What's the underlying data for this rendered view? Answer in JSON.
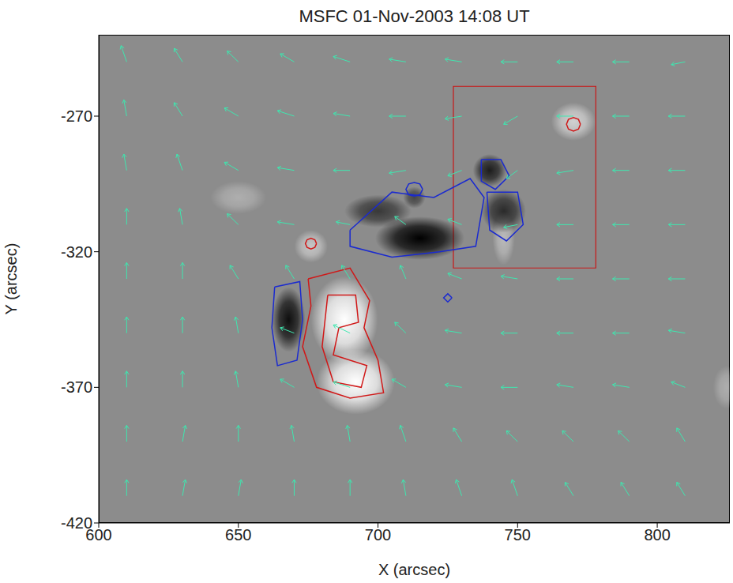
{
  "chart_data": {
    "type": "vector_magnetogram",
    "title": "MSFC 01-Nov-2003 14:08 UT",
    "x_label": "X (arcsec)",
    "y_label": "Y (arcsec)",
    "xlim": [
      600,
      826
    ],
    "ylim": [
      -420,
      -240
    ],
    "xticks": [
      600,
      650,
      700,
      750,
      800
    ],
    "yticks": [
      -420,
      -370,
      -320,
      -270
    ],
    "field_sources": [
      {
        "x": 688,
        "y": -345,
        "rx": 12,
        "ry": 16,
        "strength": 1
      },
      {
        "x": 692,
        "y": -368,
        "rx": 14,
        "ry": 12,
        "strength": 1
      },
      {
        "x": 676,
        "y": -318,
        "rx": 6,
        "ry": 6,
        "strength": 0.5
      },
      {
        "x": 770,
        "y": -272,
        "rx": 8,
        "ry": 7,
        "strength": 0.6
      },
      {
        "x": 650,
        "y": -300,
        "rx": 10,
        "ry": 6,
        "strength": 0.3
      },
      {
        "x": 745,
        "y": -315,
        "rx": 4,
        "ry": 10,
        "strength": 0.4
      },
      {
        "x": 825,
        "y": -370,
        "rx": 5,
        "ry": 8,
        "strength": 0.3
      },
      {
        "x": 668,
        "y": -345,
        "rx": 6,
        "ry": 12,
        "strength": -0.9
      },
      {
        "x": 715,
        "y": -315,
        "rx": 16,
        "ry": 8,
        "strength": -1
      },
      {
        "x": 740,
        "y": -290,
        "rx": 6,
        "ry": 6,
        "strength": -0.8
      },
      {
        "x": 745,
        "y": -305,
        "rx": 8,
        "ry": 8,
        "strength": -0.7
      },
      {
        "x": 700,
        "y": -305,
        "rx": 12,
        "ry": 6,
        "strength": -0.6
      },
      {
        "x": 713,
        "y": -300,
        "rx": 4,
        "ry": 4,
        "strength": -0.5
      }
    ],
    "contours": [
      {
        "color": "#d01818",
        "points": [
          [
            675,
            -330
          ],
          [
            690,
            -326
          ],
          [
            697,
            -338
          ],
          [
            695,
            -348
          ],
          [
            700,
            -360
          ],
          [
            702,
            -372
          ],
          [
            690,
            -374
          ],
          [
            678,
            -370
          ],
          [
            673,
            -355
          ],
          [
            676,
            -340
          ],
          [
            675,
            -330
          ]
        ]
      },
      {
        "color": "#d01818",
        "points": [
          [
            682,
            -336
          ],
          [
            692,
            -336
          ],
          [
            693,
            -346
          ],
          [
            686,
            -348
          ],
          [
            684,
            -358
          ],
          [
            696,
            -362
          ],
          [
            694,
            -370
          ],
          [
            684,
            -368
          ],
          [
            680,
            -355
          ],
          [
            682,
            -336
          ]
        ]
      },
      {
        "color": "#d01818",
        "points": [
          [
            678,
            -317
          ],
          [
            677.4,
            -315.6
          ],
          [
            676,
            -315
          ],
          [
            674.6,
            -315.6
          ],
          [
            674,
            -317
          ],
          [
            674.6,
            -318.4
          ],
          [
            676,
            -319
          ],
          [
            677.4,
            -318.4
          ],
          [
            678,
            -317
          ]
        ]
      },
      {
        "color": "#d01818",
        "points": [
          [
            772.5,
            -273
          ],
          [
            771.8,
            -271.2
          ],
          [
            770,
            -270.5
          ],
          [
            768.2,
            -271.2
          ],
          [
            767.5,
            -273
          ],
          [
            768.2,
            -274.8
          ],
          [
            770,
            -275.5
          ],
          [
            771.8,
            -274.8
          ],
          [
            772.5,
            -273
          ]
        ]
      },
      {
        "color": "#1a2ad0",
        "points": [
          [
            663,
            -333
          ],
          [
            672,
            -331
          ],
          [
            673,
            -345
          ],
          [
            671,
            -360
          ],
          [
            664,
            -362
          ],
          [
            662,
            -348
          ],
          [
            663,
            -333
          ]
        ]
      },
      {
        "color": "#1a2ad0",
        "points": [
          [
            690,
            -312
          ],
          [
            705,
            -298
          ],
          [
            720,
            -300
          ],
          [
            733,
            -293
          ],
          [
            738,
            -300
          ],
          [
            735,
            -318
          ],
          [
            722,
            -320
          ],
          [
            705,
            -322
          ],
          [
            690,
            -318
          ],
          [
            690,
            -312
          ]
        ]
      },
      {
        "color": "#1a2ad0",
        "points": [
          [
            737,
            -286
          ],
          [
            744,
            -286
          ],
          [
            747,
            -292
          ],
          [
            742,
            -297
          ],
          [
            737,
            -294
          ],
          [
            737,
            -286
          ]
        ]
      },
      {
        "color": "#1a2ad0",
        "points": [
          [
            739,
            -298
          ],
          [
            750,
            -298
          ],
          [
            752,
            -310
          ],
          [
            746,
            -316
          ],
          [
            740,
            -312
          ],
          [
            739,
            -298
          ]
        ]
      },
      {
        "color": "#1a2ad0",
        "points": [
          [
            716,
            -297
          ],
          [
            715,
            -295
          ],
          [
            713,
            -294.5
          ],
          [
            711,
            -295
          ],
          [
            710,
            -297
          ],
          [
            711,
            -299
          ],
          [
            713,
            -299.5
          ],
          [
            715,
            -299
          ],
          [
            716,
            -297
          ]
        ]
      },
      {
        "color": "#1a2ad0",
        "points": [
          [
            726.5,
            -337
          ],
          [
            725,
            -335.5
          ],
          [
            723.5,
            -337
          ],
          [
            725,
            -338.5
          ],
          [
            726.5,
            -337
          ]
        ]
      }
    ],
    "box": {
      "color": "#c81818",
      "x": [
        727,
        778
      ],
      "y": [
        -326,
        -259
      ]
    },
    "vectors": {
      "color": "#3ee8b0",
      "values": [
        [
          610,
          -250,
          -2,
          6
        ],
        [
          630,
          -250,
          -3,
          5
        ],
        [
          650,
          -250,
          -4,
          4
        ],
        [
          670,
          -250,
          -5,
          3
        ],
        [
          690,
          -250,
          -6,
          2
        ],
        [
          710,
          -250,
          -6,
          1
        ],
        [
          730,
          -250,
          -6,
          1
        ],
        [
          750,
          -250,
          -6,
          0
        ],
        [
          770,
          -250,
          -6,
          0
        ],
        [
          790,
          -250,
          -6,
          0
        ],
        [
          810,
          -250,
          -5,
          -1
        ],
        [
          610,
          -270,
          -1,
          6
        ],
        [
          630,
          -270,
          -3,
          5
        ],
        [
          650,
          -270,
          -5,
          3
        ],
        [
          670,
          -270,
          -6,
          2
        ],
        [
          690,
          -270,
          -6,
          1
        ],
        [
          710,
          -270,
          -6,
          0
        ],
        [
          730,
          -270,
          -6,
          -1
        ],
        [
          750,
          -270,
          -5,
          -3
        ],
        [
          770,
          -270,
          -6,
          0
        ],
        [
          790,
          -270,
          -6,
          0
        ],
        [
          810,
          -270,
          -6,
          0
        ],
        [
          610,
          -290,
          -1,
          6
        ],
        [
          630,
          -290,
          -2,
          6
        ],
        [
          650,
          -290,
          -5,
          3
        ],
        [
          670,
          -290,
          -6,
          1
        ],
        [
          690,
          -290,
          -6,
          0
        ],
        [
          710,
          -290,
          -6,
          -1
        ],
        [
          730,
          -290,
          -5,
          -2
        ],
        [
          750,
          -290,
          -4,
          -3
        ],
        [
          770,
          -290,
          -6,
          -1
        ],
        [
          790,
          -290,
          -6,
          0
        ],
        [
          810,
          -290,
          -6,
          0
        ],
        [
          610,
          -310,
          0,
          6
        ],
        [
          630,
          -310,
          -1,
          6
        ],
        [
          650,
          -310,
          -4,
          4
        ],
        [
          670,
          -310,
          -6,
          1
        ],
        [
          690,
          -310,
          -5,
          1
        ],
        [
          710,
          -310,
          -4,
          3
        ],
        [
          730,
          -310,
          -5,
          2
        ],
        [
          750,
          -310,
          -5,
          -1
        ],
        [
          770,
          -310,
          -6,
          0
        ],
        [
          790,
          -310,
          -6,
          0
        ],
        [
          810,
          -310,
          -6,
          0
        ],
        [
          610,
          -330,
          0,
          6
        ],
        [
          630,
          -330,
          0,
          6
        ],
        [
          650,
          -330,
          -3,
          5
        ],
        [
          670,
          -330,
          -3,
          5
        ],
        [
          690,
          -330,
          -3,
          5
        ],
        [
          710,
          -330,
          -2,
          5
        ],
        [
          730,
          -330,
          -5,
          2
        ],
        [
          750,
          -330,
          -6,
          1
        ],
        [
          770,
          -330,
          -6,
          0
        ],
        [
          790,
          -330,
          -6,
          0
        ],
        [
          810,
          -330,
          -6,
          0
        ],
        [
          610,
          -350,
          0,
          6
        ],
        [
          630,
          -350,
          0,
          6
        ],
        [
          650,
          -350,
          -1,
          6
        ],
        [
          670,
          -350,
          -5,
          2
        ],
        [
          690,
          -350,
          -6,
          3
        ],
        [
          710,
          -350,
          -4,
          4
        ],
        [
          730,
          -350,
          -6,
          1
        ],
        [
          750,
          -350,
          -6,
          0
        ],
        [
          770,
          -350,
          -6,
          0
        ],
        [
          790,
          -350,
          -6,
          0
        ],
        [
          810,
          -350,
          -6,
          1
        ],
        [
          610,
          -370,
          0,
          6
        ],
        [
          630,
          -370,
          0,
          6
        ],
        [
          650,
          -370,
          -1,
          6
        ],
        [
          670,
          -370,
          -5,
          3
        ],
        [
          690,
          -370,
          -6,
          2
        ],
        [
          710,
          -370,
          -5,
          3
        ],
        [
          730,
          -370,
          -6,
          1
        ],
        [
          750,
          -370,
          -6,
          0
        ],
        [
          770,
          -370,
          -6,
          1
        ],
        [
          790,
          -370,
          -6,
          1
        ],
        [
          810,
          -370,
          -5,
          2
        ],
        [
          610,
          -390,
          0,
          6
        ],
        [
          630,
          -390,
          1,
          6
        ],
        [
          650,
          -390,
          0,
          6
        ],
        [
          670,
          -390,
          -1,
          6
        ],
        [
          690,
          -390,
          -1,
          6
        ],
        [
          710,
          -390,
          -2,
          6
        ],
        [
          730,
          -390,
          -3,
          5
        ],
        [
          750,
          -390,
          -4,
          4
        ],
        [
          770,
          -390,
          -4,
          4
        ],
        [
          790,
          -390,
          -4,
          4
        ],
        [
          810,
          -390,
          -3,
          5
        ],
        [
          610,
          -410,
          0,
          6
        ],
        [
          630,
          -410,
          1,
          6
        ],
        [
          650,
          -410,
          1,
          6
        ],
        [
          670,
          -410,
          0,
          6
        ],
        [
          690,
          -410,
          0,
          6
        ],
        [
          710,
          -410,
          -1,
          6
        ],
        [
          730,
          -410,
          -2,
          6
        ],
        [
          750,
          -410,
          -2,
          6
        ],
        [
          770,
          -410,
          -3,
          5
        ],
        [
          790,
          -410,
          -3,
          5
        ],
        [
          810,
          -410,
          -3,
          5
        ]
      ]
    }
  }
}
